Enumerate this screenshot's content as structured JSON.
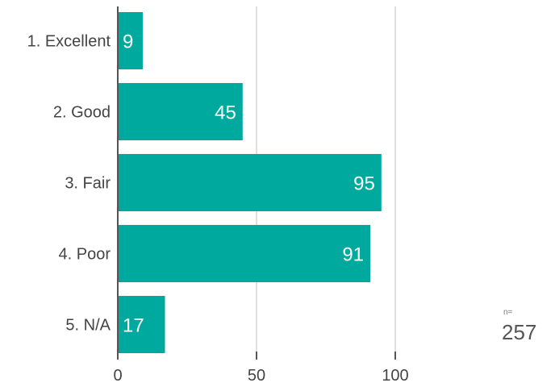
{
  "chart_data": {
    "type": "bar",
    "orientation": "horizontal",
    "categories": [
      "1. Excellent",
      "2. Good",
      "3. Fair",
      "4. Poor",
      "5. N/A"
    ],
    "values": [
      9,
      45,
      95,
      91,
      17
    ],
    "xlim": [
      0,
      100
    ],
    "xticks": [
      0,
      50,
      100
    ],
    "grid": true,
    "bar_color": "#00a99d",
    "gridline_color": "#e0e0e0",
    "axis_color": "#555555"
  },
  "sample": {
    "prefix": "n=",
    "value": "257"
  }
}
